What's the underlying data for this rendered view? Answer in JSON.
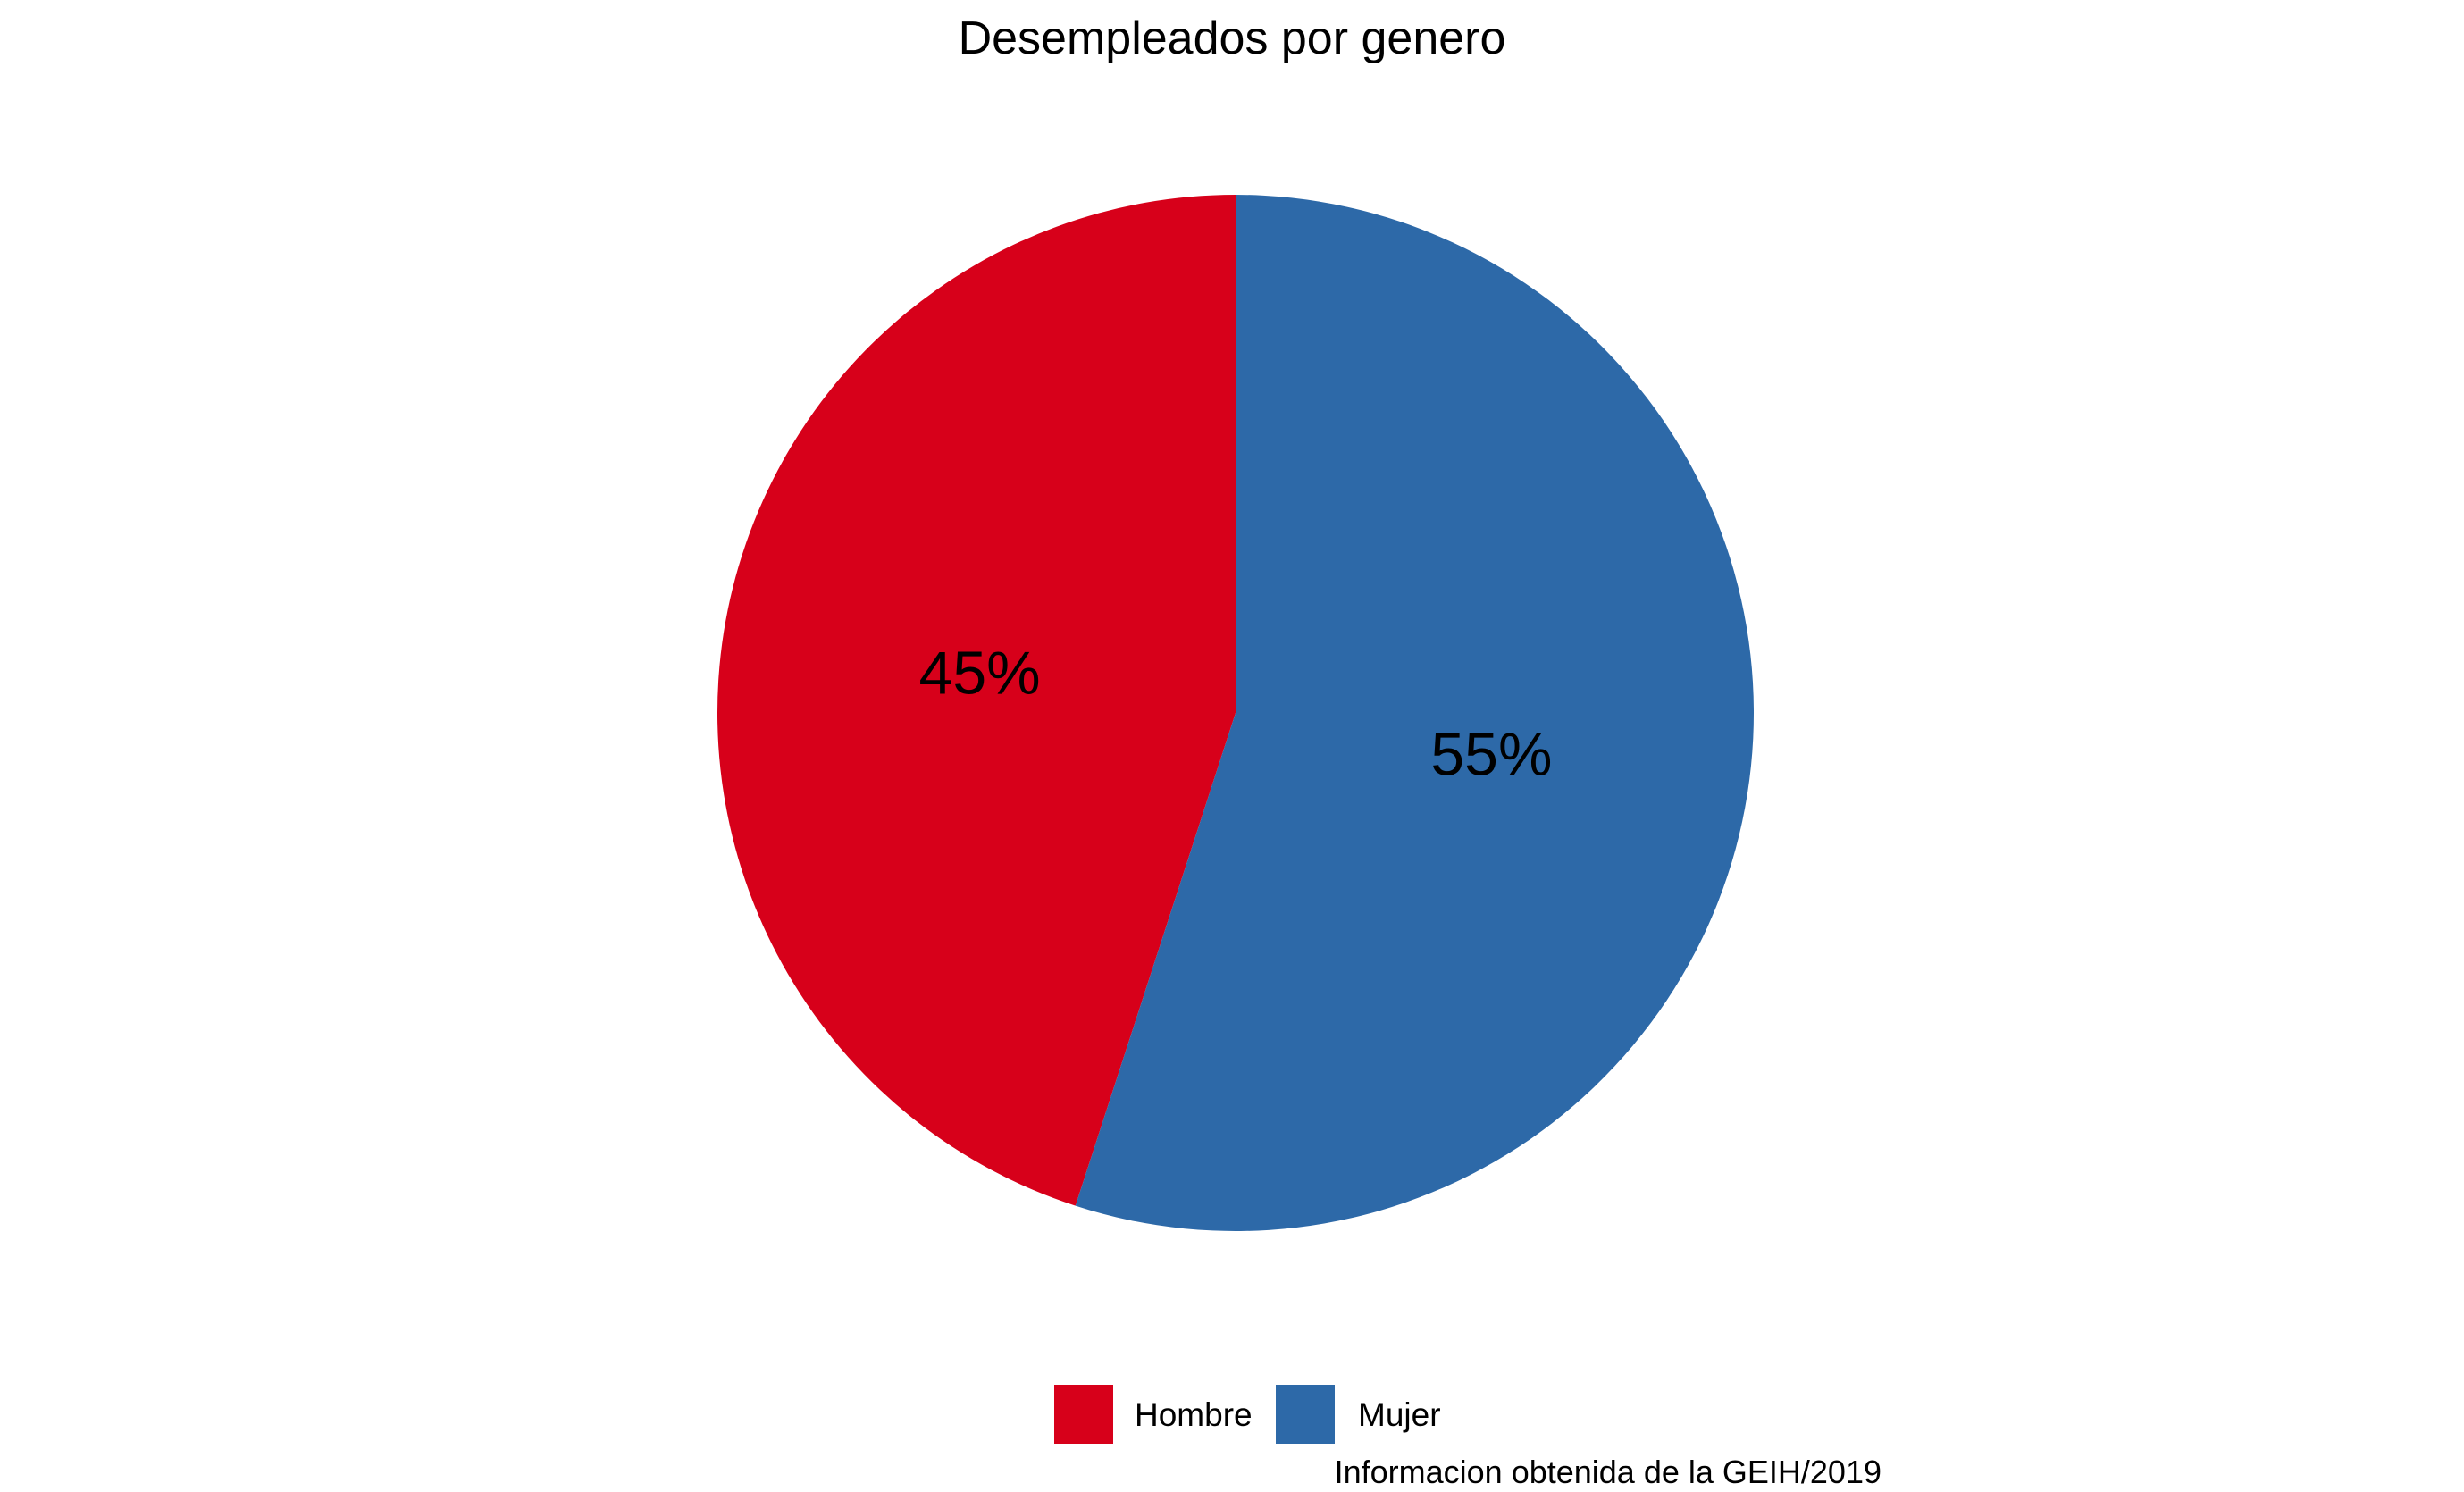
{
  "chart_data": {
    "type": "pie",
    "title": "Desempleados por genero",
    "caption": "Informacion obtenida de la GEIH/2019",
    "legend_position": "bottom",
    "categories": [
      "Hombre",
      "Mujer"
    ],
    "values": [
      45,
      55
    ],
    "labels": [
      "45%",
      "55%"
    ],
    "colors": [
      "#D7001A",
      "#2D69A8"
    ]
  }
}
